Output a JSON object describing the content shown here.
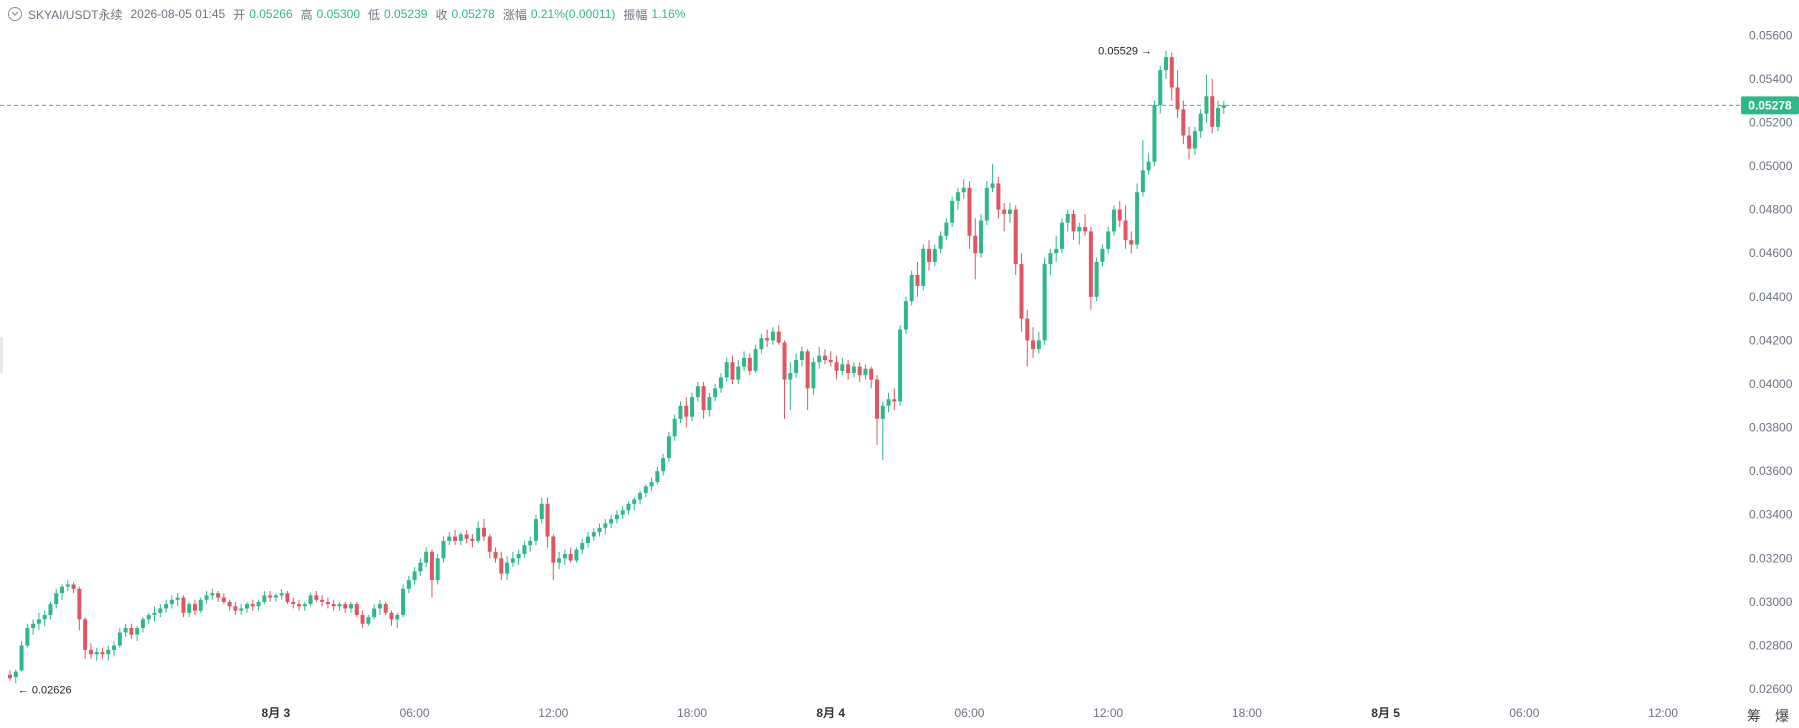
{
  "header": {
    "symbol": "SKYAI/USDT永续",
    "timestamp": "2026-08-05 01:45",
    "open_label": "开",
    "open_value": "0.05266",
    "high_label": "高",
    "high_value": "0.05300",
    "low_label": "低",
    "low_value": "0.05239",
    "close_label": "收",
    "close_value": "0.05278",
    "change_label": "涨幅",
    "change_value": "0.21%(0.00011)",
    "amplitude_label": "振幅",
    "amplitude_value": "1.16%"
  },
  "colors": {
    "up": "#2eb88a",
    "down": "#e05561",
    "axis_text": "#6b7280",
    "price_line": "#2eb88a"
  },
  "bottom_icons": [
    "筹",
    "爆"
  ],
  "chart_data": {
    "type": "candlestick",
    "ylim": [
      0.0255,
      0.0567
    ],
    "y_ticks": [
      "0.05600",
      "0.05400",
      "0.05200",
      "0.05000",
      "0.04800",
      "0.04600",
      "0.04400",
      "0.04200",
      "0.04000",
      "0.03800",
      "0.03600",
      "0.03400",
      "0.03200",
      "0.03000",
      "0.02800",
      "0.02600"
    ],
    "x_ticks": [
      "8月 3",
      "06:00",
      "12:00",
      "18:00",
      "8月 4",
      "06:00",
      "12:00",
      "18:00",
      "8月 5",
      "06:00",
      "12:00"
    ],
    "x_tick_index": [
      46,
      70,
      94,
      118,
      142,
      166,
      190,
      214,
      238,
      262,
      286
    ],
    "last_price": "0.05278",
    "max_label": "0.05529",
    "min_label": "0.02626",
    "candles": [
      [
        0.02666,
        0.02686,
        0.0264,
        0.0265
      ],
      [
        0.02655,
        0.0269,
        0.02626,
        0.0268
      ],
      [
        0.02685,
        0.0282,
        0.0268,
        0.028
      ],
      [
        0.028,
        0.029,
        0.0279,
        0.0288
      ],
      [
        0.0288,
        0.0292,
        0.0285,
        0.029
      ],
      [
        0.029,
        0.0295,
        0.0287,
        0.0292
      ],
      [
        0.0292,
        0.0296,
        0.0289,
        0.0294
      ],
      [
        0.0294,
        0.03,
        0.0292,
        0.0299
      ],
      [
        0.0299,
        0.0306,
        0.0297,
        0.0304
      ],
      [
        0.0304,
        0.0308,
        0.0301,
        0.0307
      ],
      [
        0.0307,
        0.031,
        0.0305,
        0.0308
      ],
      [
        0.0308,
        0.0309,
        0.0304,
        0.0306
      ],
      [
        0.0306,
        0.0307,
        0.0287,
        0.0292
      ],
      [
        0.0292,
        0.0293,
        0.0274,
        0.0278
      ],
      [
        0.0278,
        0.0281,
        0.0274,
        0.0276
      ],
      [
        0.0276,
        0.0279,
        0.0273,
        0.0277
      ],
      [
        0.0277,
        0.0279,
        0.0274,
        0.0276
      ],
      [
        0.0276,
        0.028,
        0.0273,
        0.0278
      ],
      [
        0.0278,
        0.0282,
        0.0275,
        0.028
      ],
      [
        0.028,
        0.0288,
        0.0279,
        0.0286
      ],
      [
        0.0286,
        0.029,
        0.0284,
        0.0288
      ],
      [
        0.0288,
        0.029,
        0.0283,
        0.0285
      ],
      [
        0.0285,
        0.0289,
        0.0282,
        0.0288
      ],
      [
        0.0288,
        0.0293,
        0.0286,
        0.0292
      ],
      [
        0.0292,
        0.0295,
        0.029,
        0.0294
      ],
      [
        0.0294,
        0.0298,
        0.0291,
        0.0295
      ],
      [
        0.0295,
        0.0299,
        0.0293,
        0.0297
      ],
      [
        0.0297,
        0.0301,
        0.0295,
        0.0299
      ],
      [
        0.0299,
        0.0303,
        0.0297,
        0.0301
      ],
      [
        0.0301,
        0.0304,
        0.0298,
        0.0302
      ],
      [
        0.0302,
        0.0303,
        0.0293,
        0.0295
      ],
      [
        0.0295,
        0.03,
        0.0293,
        0.0299
      ],
      [
        0.0299,
        0.0301,
        0.0294,
        0.0296
      ],
      [
        0.0296,
        0.0302,
        0.0295,
        0.0301
      ],
      [
        0.0301,
        0.0305,
        0.0299,
        0.0303
      ],
      [
        0.0303,
        0.0306,
        0.0301,
        0.0304
      ],
      [
        0.0304,
        0.0305,
        0.03,
        0.0302
      ],
      [
        0.0302,
        0.0304,
        0.0299,
        0.03
      ],
      [
        0.03,
        0.0301,
        0.0296,
        0.0298
      ],
      [
        0.0298,
        0.03,
        0.0294,
        0.0296
      ],
      [
        0.0296,
        0.0299,
        0.0294,
        0.0297
      ],
      [
        0.0297,
        0.03,
        0.0295,
        0.0299
      ],
      [
        0.0299,
        0.0301,
        0.0296,
        0.0298
      ],
      [
        0.0298,
        0.0301,
        0.0296,
        0.03
      ],
      [
        0.03,
        0.0305,
        0.0299,
        0.0303
      ],
      [
        0.0303,
        0.0305,
        0.03,
        0.0302
      ],
      [
        0.0302,
        0.0304,
        0.03,
        0.0303
      ],
      [
        0.0303,
        0.0306,
        0.0301,
        0.0304
      ],
      [
        0.0304,
        0.0305,
        0.0299,
        0.03
      ],
      [
        0.03,
        0.0302,
        0.0297,
        0.0299
      ],
      [
        0.0299,
        0.0301,
        0.0296,
        0.0298
      ],
      [
        0.0298,
        0.03,
        0.0296,
        0.0299
      ],
      [
        0.0299,
        0.0304,
        0.0298,
        0.0303
      ],
      [
        0.0303,
        0.0305,
        0.03,
        0.0301
      ],
      [
        0.0301,
        0.0303,
        0.0298,
        0.03
      ],
      [
        0.03,
        0.0302,
        0.0297,
        0.0299
      ],
      [
        0.0299,
        0.0301,
        0.0296,
        0.0298
      ],
      [
        0.0298,
        0.03,
        0.0296,
        0.0299
      ],
      [
        0.0299,
        0.03,
        0.0295,
        0.0297
      ],
      [
        0.0297,
        0.03,
        0.0295,
        0.0299
      ],
      [
        0.0299,
        0.03,
        0.0293,
        0.0294
      ],
      [
        0.0294,
        0.0296,
        0.0288,
        0.029
      ],
      [
        0.029,
        0.0294,
        0.0289,
        0.0293
      ],
      [
        0.0293,
        0.0299,
        0.0292,
        0.0297
      ],
      [
        0.0297,
        0.0301,
        0.0294,
        0.0299
      ],
      [
        0.0299,
        0.03,
        0.0294,
        0.0295
      ],
      [
        0.0295,
        0.0296,
        0.0289,
        0.0292
      ],
      [
        0.0292,
        0.0295,
        0.0288,
        0.0294
      ],
      [
        0.0294,
        0.0308,
        0.0293,
        0.0306
      ],
      [
        0.0306,
        0.0312,
        0.0304,
        0.031
      ],
      [
        0.031,
        0.0316,
        0.0308,
        0.0314
      ],
      [
        0.0314,
        0.032,
        0.0312,
        0.0318
      ],
      [
        0.0318,
        0.0325,
        0.0316,
        0.0323
      ],
      [
        0.0323,
        0.0324,
        0.0302,
        0.031
      ],
      [
        0.031,
        0.0322,
        0.0308,
        0.032
      ],
      [
        0.032,
        0.033,
        0.0318,
        0.0328
      ],
      [
        0.0328,
        0.0332,
        0.0326,
        0.033
      ],
      [
        0.033,
        0.0333,
        0.0326,
        0.0328
      ],
      [
        0.0328,
        0.0332,
        0.0326,
        0.0331
      ],
      [
        0.0331,
        0.0333,
        0.0327,
        0.0329
      ],
      [
        0.0329,
        0.0331,
        0.0325,
        0.0328
      ],
      [
        0.0328,
        0.0337,
        0.0327,
        0.0334
      ],
      [
        0.0334,
        0.0338,
        0.0328,
        0.033
      ],
      [
        0.033,
        0.0331,
        0.032,
        0.0323
      ],
      [
        0.0323,
        0.0325,
        0.0318,
        0.032
      ],
      [
        0.032,
        0.0323,
        0.031,
        0.0313
      ],
      [
        0.0313,
        0.0321,
        0.031,
        0.0318
      ],
      [
        0.0318,
        0.0323,
        0.0316,
        0.032
      ],
      [
        0.032,
        0.0324,
        0.0317,
        0.0322
      ],
      [
        0.0322,
        0.0328,
        0.032,
        0.0326
      ],
      [
        0.0326,
        0.033,
        0.0323,
        0.0328
      ],
      [
        0.0328,
        0.034,
        0.0326,
        0.0338
      ],
      [
        0.0338,
        0.0348,
        0.0336,
        0.0345
      ],
      [
        0.0345,
        0.0348,
        0.0325,
        0.033
      ],
      [
        0.033,
        0.0331,
        0.031,
        0.0318
      ],
      [
        0.0318,
        0.0323,
        0.0315,
        0.032
      ],
      [
        0.032,
        0.0324,
        0.0317,
        0.0322
      ],
      [
        0.0322,
        0.0325,
        0.0318,
        0.0319
      ],
      [
        0.0319,
        0.0325,
        0.0318,
        0.0324
      ],
      [
        0.0324,
        0.0329,
        0.0322,
        0.0327
      ],
      [
        0.0327,
        0.0332,
        0.0325,
        0.033
      ],
      [
        0.033,
        0.0334,
        0.0328,
        0.0332
      ],
      [
        0.0332,
        0.0336,
        0.033,
        0.0334
      ],
      [
        0.0334,
        0.0338,
        0.0331,
        0.0336
      ],
      [
        0.0336,
        0.034,
        0.0334,
        0.0338
      ],
      [
        0.0338,
        0.0342,
        0.0336,
        0.034
      ],
      [
        0.034,
        0.0344,
        0.0338,
        0.0342
      ],
      [
        0.0342,
        0.0346,
        0.034,
        0.0345
      ],
      [
        0.0345,
        0.0348,
        0.0342,
        0.0347
      ],
      [
        0.0347,
        0.0351,
        0.0345,
        0.035
      ],
      [
        0.035,
        0.0354,
        0.0348,
        0.0353
      ],
      [
        0.0353,
        0.0357,
        0.0351,
        0.0355
      ],
      [
        0.0355,
        0.0362,
        0.0354,
        0.036
      ],
      [
        0.036,
        0.0368,
        0.0358,
        0.0366
      ],
      [
        0.0366,
        0.0378,
        0.0364,
        0.0376
      ],
      [
        0.0376,
        0.0386,
        0.0374,
        0.0384
      ],
      [
        0.0384,
        0.0392,
        0.0382,
        0.039
      ],
      [
        0.039,
        0.0394,
        0.038,
        0.0385
      ],
      [
        0.0385,
        0.0396,
        0.0383,
        0.0394
      ],
      [
        0.0394,
        0.0401,
        0.0392,
        0.0399
      ],
      [
        0.0399,
        0.0401,
        0.0384,
        0.0388
      ],
      [
        0.0388,
        0.0396,
        0.0385,
        0.0394
      ],
      [
        0.0394,
        0.04,
        0.0392,
        0.0398
      ],
      [
        0.0398,
        0.0405,
        0.0396,
        0.0403
      ],
      [
        0.0403,
        0.0412,
        0.0401,
        0.041
      ],
      [
        0.041,
        0.0413,
        0.04,
        0.0402
      ],
      [
        0.0402,
        0.0411,
        0.04,
        0.0408
      ],
      [
        0.0408,
        0.0415,
        0.0406,
        0.0412
      ],
      [
        0.0412,
        0.0414,
        0.0404,
        0.0406
      ],
      [
        0.0406,
        0.0418,
        0.0405,
        0.0416
      ],
      [
        0.0416,
        0.0423,
        0.0414,
        0.0421
      ],
      [
        0.0421,
        0.0425,
        0.0417,
        0.042
      ],
      [
        0.042,
        0.0426,
        0.0418,
        0.0424
      ],
      [
        0.0424,
        0.0427,
        0.0418,
        0.0419
      ],
      [
        0.0419,
        0.042,
        0.0384,
        0.0402
      ],
      [
        0.0402,
        0.041,
        0.0388,
        0.0405
      ],
      [
        0.0405,
        0.0414,
        0.0403,
        0.0411
      ],
      [
        0.0411,
        0.0417,
        0.0408,
        0.0415
      ],
      [
        0.0415,
        0.0416,
        0.0388,
        0.0398
      ],
      [
        0.0398,
        0.0412,
        0.0395,
        0.041
      ],
      [
        0.041,
        0.0417,
        0.0407,
        0.0413
      ],
      [
        0.0413,
        0.0416,
        0.0409,
        0.0411
      ],
      [
        0.0411,
        0.0415,
        0.0408,
        0.041
      ],
      [
        0.041,
        0.0413,
        0.0402,
        0.0406
      ],
      [
        0.0406,
        0.0412,
        0.0404,
        0.0409
      ],
      [
        0.0409,
        0.0411,
        0.0402,
        0.0405
      ],
      [
        0.0405,
        0.041,
        0.0403,
        0.0408
      ],
      [
        0.0408,
        0.041,
        0.0401,
        0.0404
      ],
      [
        0.0404,
        0.0409,
        0.0402,
        0.0407
      ],
      [
        0.0407,
        0.0408,
        0.0398,
        0.0402
      ],
      [
        0.0402,
        0.0404,
        0.0372,
        0.0384
      ],
      [
        0.0384,
        0.0392,
        0.0365,
        0.039
      ],
      [
        0.039,
        0.0396,
        0.0387,
        0.0393
      ],
      [
        0.0393,
        0.0398,
        0.0388,
        0.0392
      ],
      [
        0.0392,
        0.0427,
        0.039,
        0.0425
      ],
      [
        0.0425,
        0.044,
        0.0423,
        0.0438
      ],
      [
        0.0438,
        0.0452,
        0.0436,
        0.045
      ],
      [
        0.045,
        0.0456,
        0.044,
        0.0445
      ],
      [
        0.0445,
        0.0464,
        0.0443,
        0.0462
      ],
      [
        0.0462,
        0.0466,
        0.0452,
        0.0456
      ],
      [
        0.0456,
        0.0464,
        0.0454,
        0.0462
      ],
      [
        0.0462,
        0.047,
        0.046,
        0.0468
      ],
      [
        0.0468,
        0.0476,
        0.0466,
        0.0474
      ],
      [
        0.0474,
        0.0486,
        0.0472,
        0.0484
      ],
      [
        0.0484,
        0.049,
        0.048,
        0.0488
      ],
      [
        0.0488,
        0.0494,
        0.0485,
        0.049
      ],
      [
        0.049,
        0.0493,
        0.0462,
        0.0468
      ],
      [
        0.0468,
        0.0476,
        0.0448,
        0.046
      ],
      [
        0.046,
        0.0478,
        0.0458,
        0.0475
      ],
      [
        0.0475,
        0.0493,
        0.0473,
        0.049
      ],
      [
        0.049,
        0.0501,
        0.0488,
        0.0492
      ],
      [
        0.0492,
        0.0495,
        0.0476,
        0.048
      ],
      [
        0.048,
        0.0483,
        0.047,
        0.0478
      ],
      [
        0.0478,
        0.0483,
        0.0474,
        0.048
      ],
      [
        0.048,
        0.0482,
        0.045,
        0.0455
      ],
      [
        0.0455,
        0.046,
        0.0424,
        0.043
      ],
      [
        0.043,
        0.0434,
        0.0408,
        0.042
      ],
      [
        0.042,
        0.0426,
        0.0412,
        0.0416
      ],
      [
        0.0416,
        0.0424,
        0.0414,
        0.042
      ],
      [
        0.042,
        0.0458,
        0.0418,
        0.0455
      ],
      [
        0.0455,
        0.0462,
        0.045,
        0.046
      ],
      [
        0.046,
        0.0468,
        0.0456,
        0.0462
      ],
      [
        0.0462,
        0.0476,
        0.046,
        0.0474
      ],
      [
        0.0474,
        0.048,
        0.047,
        0.0478
      ],
      [
        0.0478,
        0.048,
        0.0466,
        0.047
      ],
      [
        0.047,
        0.0474,
        0.0464,
        0.0472
      ],
      [
        0.0472,
        0.0478,
        0.0468,
        0.047
      ],
      [
        0.047,
        0.0472,
        0.0434,
        0.044
      ],
      [
        0.044,
        0.0458,
        0.0438,
        0.0456
      ],
      [
        0.0456,
        0.0464,
        0.0454,
        0.0462
      ],
      [
        0.0462,
        0.0472,
        0.046,
        0.047
      ],
      [
        0.047,
        0.0482,
        0.0468,
        0.048
      ],
      [
        0.048,
        0.0484,
        0.0472,
        0.0475
      ],
      [
        0.0475,
        0.0482,
        0.0462,
        0.0466
      ],
      [
        0.0466,
        0.047,
        0.046,
        0.0464
      ],
      [
        0.0464,
        0.0492,
        0.0462,
        0.0488
      ],
      [
        0.0488,
        0.0512,
        0.0486,
        0.0498
      ],
      [
        0.0498,
        0.0506,
        0.0496,
        0.0502
      ],
      [
        0.0502,
        0.053,
        0.05,
        0.0528
      ],
      [
        0.0528,
        0.0546,
        0.0524,
        0.0544
      ],
      [
        0.0544,
        0.05529,
        0.054,
        0.055
      ],
      [
        0.055,
        0.0552,
        0.053,
        0.0536
      ],
      [
        0.0536,
        0.0544,
        0.0522,
        0.0526
      ],
      [
        0.0526,
        0.053,
        0.051,
        0.0514
      ],
      [
        0.0514,
        0.0518,
        0.0503,
        0.0508
      ],
      [
        0.0508,
        0.0518,
        0.0505,
        0.0516
      ],
      [
        0.0516,
        0.0526,
        0.0513,
        0.0524
      ],
      [
        0.0524,
        0.0542,
        0.052,
        0.0532
      ],
      [
        0.0532,
        0.054,
        0.0515,
        0.0518
      ],
      [
        0.0518,
        0.053,
        0.0516,
        0.05266
      ],
      [
        0.05266,
        0.053,
        0.05239,
        0.05278
      ]
    ]
  }
}
